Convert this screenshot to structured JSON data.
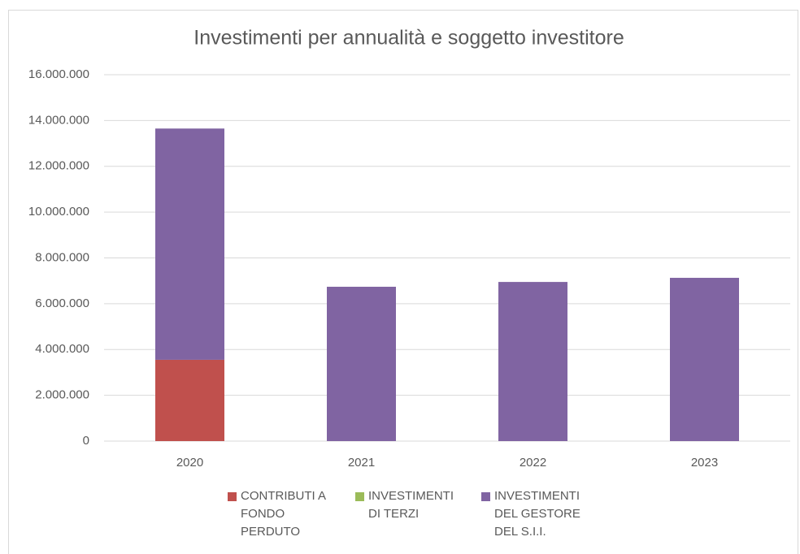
{
  "chart_data": {
    "type": "stacked_bar",
    "title": "Investimenti per annualità e soggetto investitore",
    "categories": [
      "2020",
      "2021",
      "2022",
      "2023"
    ],
    "series": [
      {
        "name": "CONTRIBUTI A FONDO PERDUTO",
        "color": "#c0504d",
        "values": [
          3550000,
          0,
          0,
          0
        ]
      },
      {
        "name": "INVESTIMENTI DI TERZI",
        "color": "#9bbb59",
        "values": [
          0,
          0,
          0,
          0
        ]
      },
      {
        "name": "INVESTIMENTI DEL GESTORE DEL S.I.I.",
        "color": "#8064a2",
        "values": [
          10100000,
          6740000,
          6950000,
          7130000
        ]
      }
    ],
    "ylim": [
      0,
      16000000
    ],
    "yticks": [
      0,
      {
        "value": 2000000,
        "label": "2.000.000"
      },
      {
        "value": 4000000,
        "label": "4.000.000"
      },
      {
        "value": 6000000,
        "label": "6.000.000"
      },
      {
        "value": 8000000,
        "label": "8.000.000"
      },
      {
        "value": 10000000,
        "label": "10.000.000"
      },
      {
        "value": 12000000,
        "label": "12.000.000"
      },
      {
        "value": 14000000,
        "label": "14.000.000"
      },
      {
        "value": 16000000,
        "label": "16.000.000"
      }
    ],
    "grid": true,
    "legend": "bottom"
  }
}
